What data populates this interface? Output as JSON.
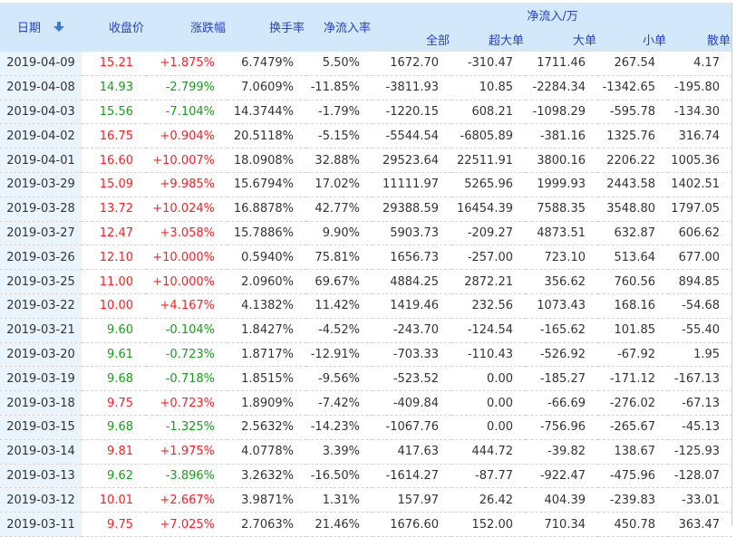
{
  "colors": {
    "red": "#fe2121",
    "green": "#18a018",
    "header_text": "#2742c8",
    "header_bg": "#d3e9fb",
    "date_bg": "#e9f4fd",
    "value_text": "#333333",
    "arrow_blue": "#3a7bd5"
  },
  "table": {
    "headers": {
      "date": "日期",
      "close": "收盘价",
      "change": "涨跌幅",
      "turnover": "换手率",
      "inflow_rate": "净流入率",
      "inflow_group": "净流入/万",
      "all": "全部",
      "super_large": "超大单",
      "large": "大单",
      "small": "小单",
      "scattered": "散单"
    },
    "sort_icon": "sort-descending-arrow",
    "rows": [
      {
        "date": "2019-04-09",
        "trend": "up",
        "close": "15.21",
        "change": "+1.875%",
        "turnover": "6.7479%",
        "rate": "5.50%",
        "all": "1672.70",
        "super": "-310.47",
        "large": "1711.46",
        "small": "267.54",
        "scatter": "4.17"
      },
      {
        "date": "2019-04-08",
        "trend": "down",
        "close": "14.93",
        "change": "-2.799%",
        "turnover": "7.0609%",
        "rate": "-11.85%",
        "all": "-3811.93",
        "super": "10.85",
        "large": "-2284.34",
        "small": "-1342.65",
        "scatter": "-195.80"
      },
      {
        "date": "2019-04-03",
        "trend": "down",
        "close": "15.56",
        "change": "-7.104%",
        "turnover": "14.3744%",
        "rate": "-1.79%",
        "all": "-1220.15",
        "super": "608.21",
        "large": "-1098.29",
        "small": "-595.78",
        "scatter": "-134.30"
      },
      {
        "date": "2019-04-02",
        "trend": "up",
        "close": "16.75",
        "change": "+0.904%",
        "turnover": "20.5118%",
        "rate": "-5.15%",
        "all": "-5544.54",
        "super": "-6805.89",
        "large": "-381.16",
        "small": "1325.76",
        "scatter": "316.74"
      },
      {
        "date": "2019-04-01",
        "trend": "up",
        "close": "16.60",
        "change": "+10.007%",
        "turnover": "18.0908%",
        "rate": "32.88%",
        "all": "29523.64",
        "super": "22511.91",
        "large": "3800.16",
        "small": "2206.22",
        "scatter": "1005.36"
      },
      {
        "date": "2019-03-29",
        "trend": "up",
        "close": "15.09",
        "change": "+9.985%",
        "turnover": "15.6794%",
        "rate": "17.02%",
        "all": "11111.97",
        "super": "5265.96",
        "large": "1999.93",
        "small": "2443.58",
        "scatter": "1402.51"
      },
      {
        "date": "2019-03-28",
        "trend": "up",
        "close": "13.72",
        "change": "+10.024%",
        "turnover": "16.8878%",
        "rate": "42.77%",
        "all": "29388.59",
        "super": "16454.39",
        "large": "7588.35",
        "small": "3548.80",
        "scatter": "1797.05"
      },
      {
        "date": "2019-03-27",
        "trend": "up",
        "close": "12.47",
        "change": "+3.058%",
        "turnover": "15.7886%",
        "rate": "9.90%",
        "all": "5903.73",
        "super": "-209.27",
        "large": "4873.51",
        "small": "632.87",
        "scatter": "606.62"
      },
      {
        "date": "2019-03-26",
        "trend": "up",
        "close": "12.10",
        "change": "+10.000%",
        "turnover": "0.5940%",
        "rate": "75.81%",
        "all": "1656.73",
        "super": "-257.00",
        "large": "723.10",
        "small": "513.64",
        "scatter": "677.00"
      },
      {
        "date": "2019-03-25",
        "trend": "up",
        "close": "11.00",
        "change": "+10.000%",
        "turnover": "2.0960%",
        "rate": "69.67%",
        "all": "4884.25",
        "super": "2872.21",
        "large": "356.62",
        "small": "760.56",
        "scatter": "894.85"
      },
      {
        "date": "2019-03-22",
        "trend": "up",
        "close": "10.00",
        "change": "+4.167%",
        "turnover": "4.1382%",
        "rate": "11.42%",
        "all": "1419.46",
        "super": "232.56",
        "large": "1073.43",
        "small": "168.16",
        "scatter": "-54.68"
      },
      {
        "date": "2019-03-21",
        "trend": "down",
        "close": "9.60",
        "change": "-0.104%",
        "turnover": "1.8427%",
        "rate": "-4.52%",
        "all": "-243.70",
        "super": "-124.54",
        "large": "-165.62",
        "small": "101.85",
        "scatter": "-55.40"
      },
      {
        "date": "2019-03-20",
        "trend": "down",
        "close": "9.61",
        "change": "-0.723%",
        "turnover": "1.8717%",
        "rate": "-12.91%",
        "all": "-703.33",
        "super": "-110.43",
        "large": "-526.92",
        "small": "-67.92",
        "scatter": "1.95"
      },
      {
        "date": "2019-03-19",
        "trend": "down",
        "close": "9.68",
        "change": "-0.718%",
        "turnover": "1.8515%",
        "rate": "-9.56%",
        "all": "-523.52",
        "super": "0.00",
        "large": "-185.27",
        "small": "-171.12",
        "scatter": "-167.13"
      },
      {
        "date": "2019-03-18",
        "trend": "up",
        "close": "9.75",
        "change": "+0.723%",
        "turnover": "1.8909%",
        "rate": "-7.42%",
        "all": "-409.84",
        "super": "0.00",
        "large": "-66.69",
        "small": "-276.02",
        "scatter": "-67.13"
      },
      {
        "date": "2019-03-15",
        "trend": "down",
        "close": "9.68",
        "change": "-1.325%",
        "turnover": "2.5632%",
        "rate": "-14.23%",
        "all": "-1067.76",
        "super": "0.00",
        "large": "-756.96",
        "small": "-265.67",
        "scatter": "-45.13"
      },
      {
        "date": "2019-03-14",
        "trend": "up",
        "close": "9.81",
        "change": "+1.975%",
        "turnover": "4.0778%",
        "rate": "3.39%",
        "all": "417.63",
        "super": "444.72",
        "large": "-39.82",
        "small": "138.67",
        "scatter": "-125.93"
      },
      {
        "date": "2019-03-13",
        "trend": "down",
        "close": "9.62",
        "change": "-3.896%",
        "turnover": "3.2632%",
        "rate": "-16.50%",
        "all": "-1614.27",
        "super": "-87.77",
        "large": "-922.47",
        "small": "-475.96",
        "scatter": "-128.07"
      },
      {
        "date": "2019-03-12",
        "trend": "up",
        "close": "10.01",
        "change": "+2.667%",
        "turnover": "3.9871%",
        "rate": "1.31%",
        "all": "157.97",
        "super": "26.42",
        "large": "404.39",
        "small": "-239.83",
        "scatter": "-33.01"
      },
      {
        "date": "2019-03-11",
        "trend": "up",
        "close": "9.75",
        "change": "+7.025%",
        "turnover": "2.7063%",
        "rate": "21.46%",
        "all": "1676.60",
        "super": "152.00",
        "large": "710.34",
        "small": "450.78",
        "scatter": "363.47"
      }
    ]
  }
}
